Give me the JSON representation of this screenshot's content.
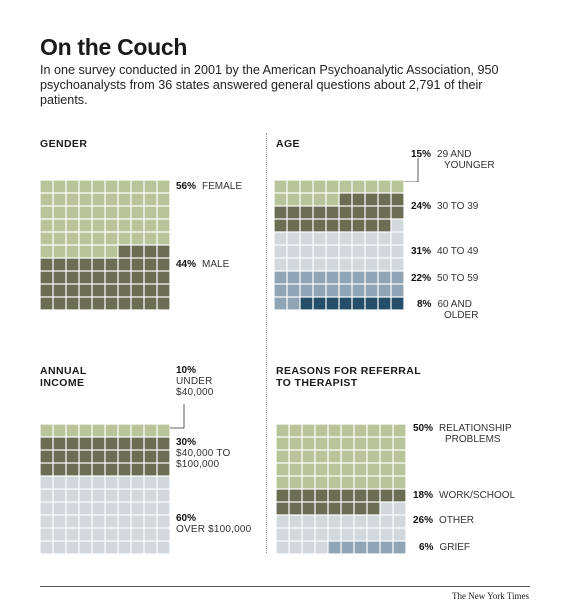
{
  "title": "On the Couch",
  "subtitle": "In one survey conducted in 2001 by the American Psychoanalytic Association, 950 psychoanalysts from 36 states answered general questions about 2,791 of their patients.",
  "credit": "The New York Times",
  "colors": {
    "light_green": "#b9c49a",
    "dark_green": "#6b6d55",
    "light_gray": "#d2d8dc",
    "mid_blue": "#8fa5b5",
    "dark_blue": "#254f68"
  },
  "chart_data": [
    {
      "type": "waffle",
      "title": "GENDER",
      "grid": {
        "cols": 10,
        "rows": 10
      },
      "categories": [
        "FEMALE",
        "MALE"
      ],
      "values": [
        56,
        44
      ],
      "colors": [
        "#b9c49a",
        "#6b6d55"
      ]
    },
    {
      "type": "waffle",
      "title": "AGE",
      "grid": {
        "cols": 10,
        "rows": 10
      },
      "categories": [
        "29 AND YOUNGER",
        "30 TO 39",
        "40 TO 49",
        "50 TO 59",
        "60 AND OLDER"
      ],
      "values": [
        15,
        24,
        31,
        22,
        8
      ],
      "colors": [
        "#b9c49a",
        "#6b6d55",
        "#d2d8dc",
        "#8fa5b5",
        "#254f68"
      ]
    },
    {
      "type": "waffle",
      "title": "ANNUAL INCOME",
      "grid": {
        "cols": 10,
        "rows": 10
      },
      "categories": [
        "UNDER $40,000",
        "$40,000 TO $100,000",
        "OVER $100,000"
      ],
      "values": [
        10,
        30,
        60
      ],
      "colors": [
        "#b9c49a",
        "#6b6d55",
        "#d2d8dc"
      ]
    },
    {
      "type": "waffle",
      "title": "REASONS FOR REFERRAL TO THERAPIST",
      "grid": {
        "cols": 10,
        "rows": 10
      },
      "categories": [
        "RELATIONSHIP PROBLEMS",
        "WORK/SCHOOL",
        "OTHER",
        "GRIEF"
      ],
      "values": [
        50,
        18,
        26,
        6
      ],
      "colors": [
        "#b9c49a",
        "#6b6d55",
        "#d2d8dc",
        "#8fa5b5"
      ]
    }
  ],
  "labels": {
    "gender": [
      {
        "pct": "56%",
        "desc": "FEMALE"
      },
      {
        "pct": "44%",
        "desc": "MALE"
      }
    ],
    "age": [
      {
        "pct": "15%",
        "desc1": "29 AND",
        "desc2": "YOUNGER"
      },
      {
        "pct": "24%",
        "desc": "30 TO 39"
      },
      {
        "pct": "31%",
        "desc": "40 TO 49"
      },
      {
        "pct": "22%",
        "desc": "50 TO 59"
      },
      {
        "pct": "8%",
        "desc1": "60 AND",
        "desc2": "OLDER"
      }
    ],
    "income": [
      {
        "pct": "10%",
        "desc1": "UNDER",
        "desc2": "$40,000"
      },
      {
        "pct": "30%",
        "desc1": "$40,000 TO",
        "desc2": "$100,000"
      },
      {
        "pct": "60%",
        "desc": "OVER $100,000"
      }
    ],
    "reasons": [
      {
        "pct": "50%",
        "desc1": "RELATIONSHIP",
        "desc2": "PROBLEMS"
      },
      {
        "pct": "18%",
        "desc": "WORK/SCHOOL"
      },
      {
        "pct": "26%",
        "desc": "OTHER"
      },
      {
        "pct": "6%",
        "desc": "GRIEF"
      }
    ]
  },
  "section_titles": {
    "gender": "GENDER",
    "age": "AGE",
    "income_1": "ANNUAL",
    "income_2": "INCOME",
    "reasons_1": "REASONS FOR REFERRAL",
    "reasons_2": "TO THERAPIST"
  }
}
